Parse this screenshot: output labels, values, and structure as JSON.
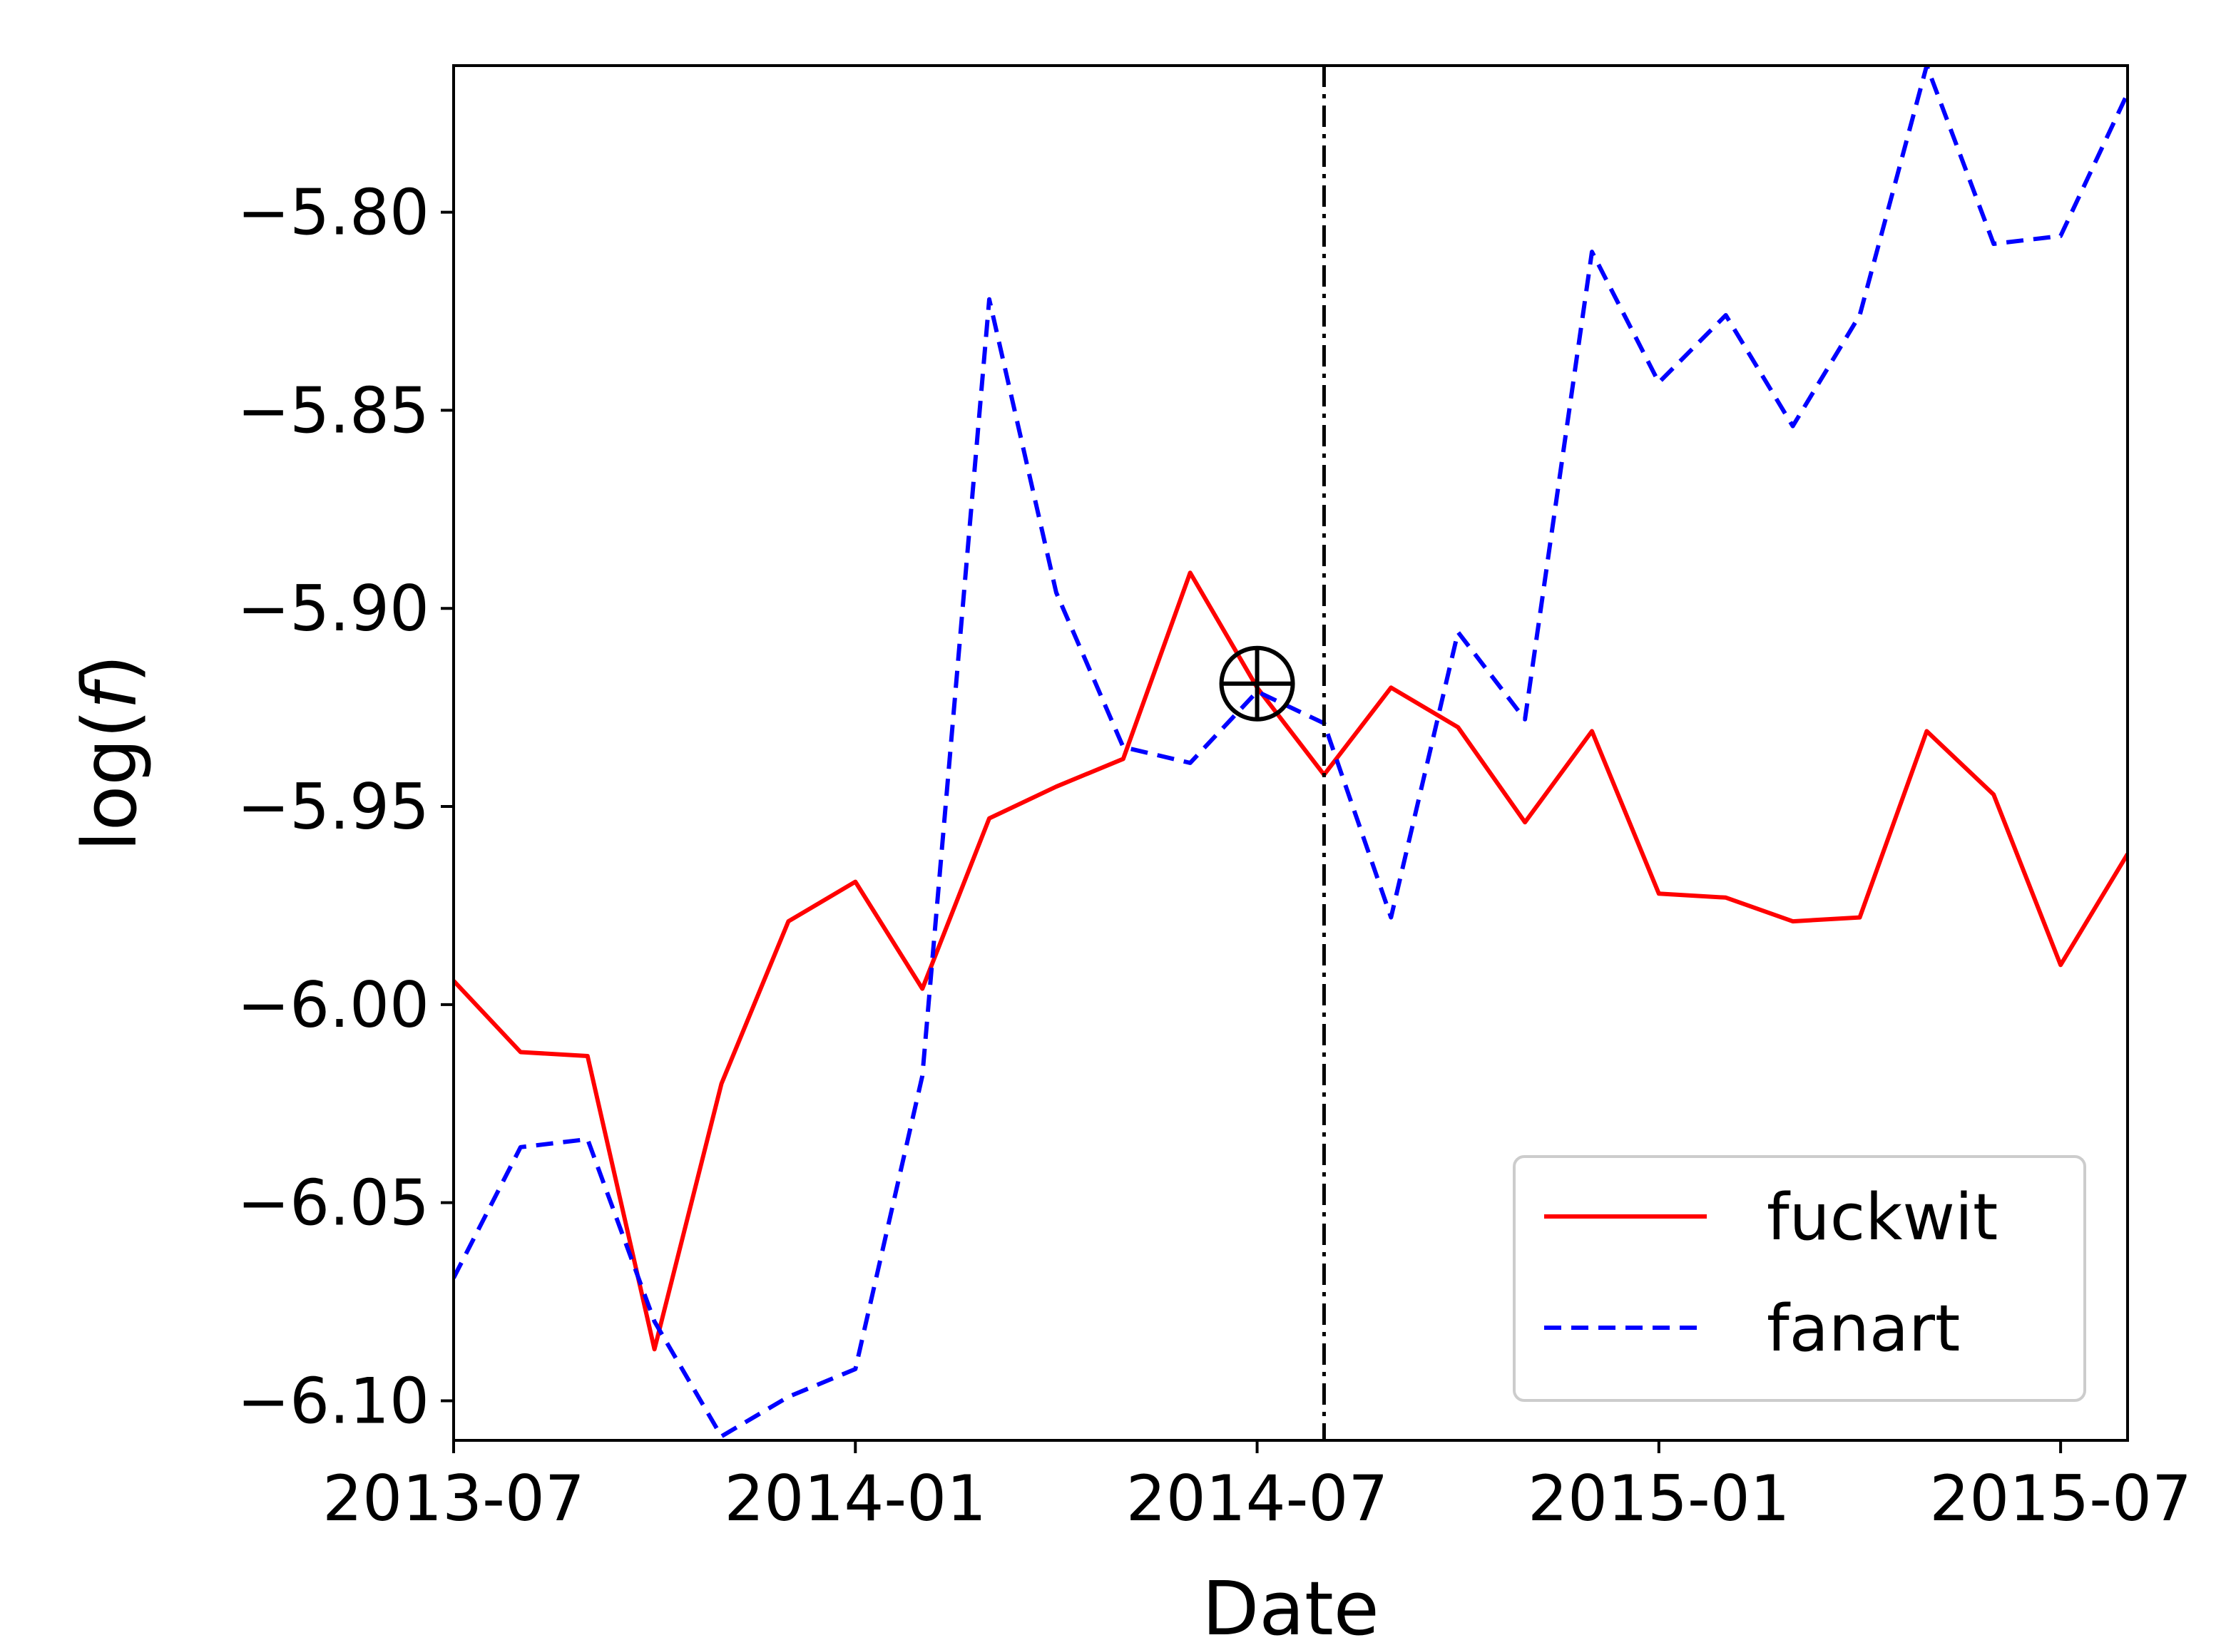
{
  "chart_data": {
    "type": "line",
    "xlabel": "Date",
    "ylabel": "log(f)",
    "ylim": [
      -6.11,
      -5.763
    ],
    "xlim": [
      "2013-07",
      "2015-08"
    ],
    "x_ticks": [
      "2013-07",
      "2014-01",
      "2014-07",
      "2015-01",
      "2015-07"
    ],
    "y_ticks": [
      "−6.10",
      "−6.05",
      "−6.00",
      "−5.95",
      "−5.90",
      "−5.85",
      "−5.80"
    ],
    "y_tick_values": [
      -6.1,
      -6.05,
      -6.0,
      -5.95,
      -5.9,
      -5.85,
      -5.8
    ],
    "grid": false,
    "legend_position": "lower-right",
    "x": [
      "2013-07",
      "2013-08",
      "2013-09",
      "2013-10",
      "2013-11",
      "2013-12",
      "2014-01",
      "2014-02",
      "2014-03",
      "2014-04",
      "2014-05",
      "2014-06",
      "2014-07",
      "2014-08",
      "2014-09",
      "2014-10",
      "2014-11",
      "2014-12",
      "2015-01",
      "2015-02",
      "2015-03",
      "2015-04",
      "2015-05",
      "2015-06",
      "2015-07",
      "2015-08"
    ],
    "series": [
      {
        "name": "fuckwit",
        "color": "#ff0000",
        "style": "solid",
        "values": [
          -5.994,
          -6.012,
          -6.013,
          -6.087,
          -6.02,
          -5.979,
          -5.969,
          -5.996,
          -5.953,
          -5.945,
          -5.938,
          -5.891,
          -5.92,
          -5.942,
          -5.92,
          -5.93,
          -5.954,
          -5.931,
          -5.972,
          -5.973,
          -5.979,
          -5.978,
          -5.931,
          -5.947,
          -5.99,
          -5.962
        ]
      },
      {
        "name": "fanart",
        "color": "#0000ff",
        "style": "dashed",
        "values": [
          -6.069,
          -6.036,
          -6.034,
          -6.08,
          -6.109,
          -6.099,
          -6.092,
          -6.018,
          -5.822,
          -5.896,
          -5.935,
          -5.939,
          -5.921,
          -5.929,
          -5.978,
          -5.906,
          -5.928,
          -5.81,
          -5.843,
          -5.826,
          -5.854,
          -5.826,
          -5.763,
          -5.808,
          -5.806,
          -5.77
        ]
      }
    ],
    "vertical_line": {
      "x": "2014-08",
      "style": "dashdot",
      "color": "#000000"
    },
    "marker": {
      "x": "2014-07",
      "y": -5.919,
      "symbol": "circled-plus"
    }
  }
}
